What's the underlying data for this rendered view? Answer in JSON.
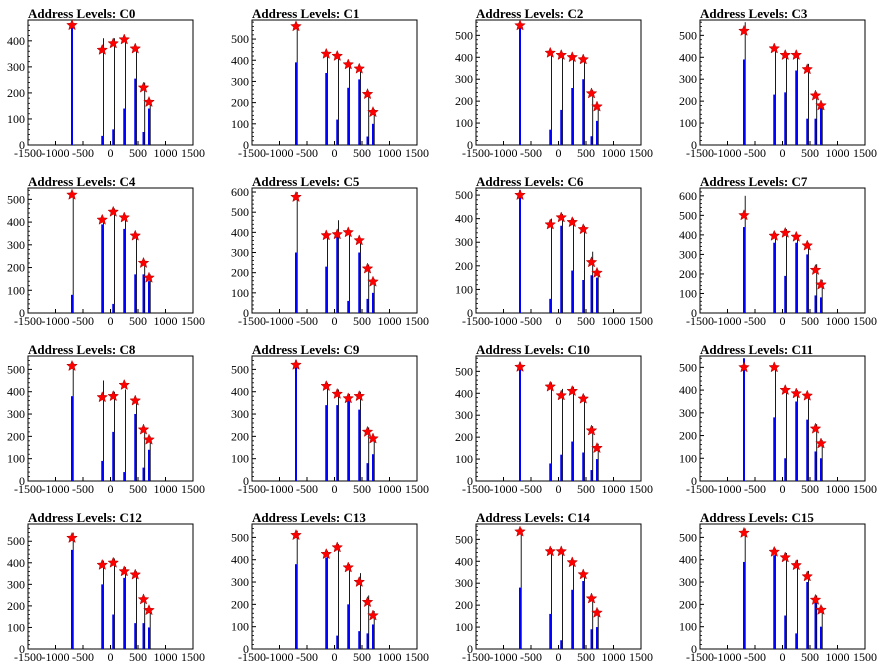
{
  "chart_data": [
    {
      "type": "bar",
      "title": "Address Levels: C0",
      "xlim": [
        -1500,
        1500
      ],
      "ylim": [
        0,
        480
      ],
      "yticks": [
        "0",
        "100",
        "200",
        "300",
        "400"
      ],
      "xticks": [
        "-1500",
        "-1000",
        "-500",
        "0",
        "500",
        "1000",
        "1500"
      ],
      "blue_x": [
        -700,
        -150,
        50,
        250,
        450,
        600,
        700
      ],
      "blue_y": [
        455,
        35,
        60,
        140,
        255,
        50,
        140
      ],
      "black_x": [
        -150,
        50,
        250,
        450,
        600,
        700
      ],
      "black_y": [
        410,
        410,
        405,
        375,
        240,
        170
      ],
      "peaks_x": [
        -700,
        -150,
        50,
        250,
        450,
        600,
        700
      ],
      "peaks_y": [
        460,
        365,
        390,
        405,
        370,
        220,
        165
      ]
    },
    {
      "type": "bar",
      "title": "Address Levels: C1",
      "xlim": [
        -1500,
        1500
      ],
      "ylim": [
        0,
        590
      ],
      "yticks": [
        "0",
        "100",
        "200",
        "300",
        "400",
        "500"
      ],
      "xticks": [
        "-1500",
        "-1000",
        "-500",
        "0",
        "500",
        "1000",
        "1500"
      ],
      "blue_x": [
        -700,
        -150,
        50,
        250,
        450,
        600,
        700
      ],
      "blue_y": [
        390,
        340,
        120,
        270,
        310,
        40,
        100
      ],
      "black_x": [
        -700,
        -150,
        50,
        250,
        450,
        600,
        700
      ],
      "black_y": [
        570,
        440,
        430,
        380,
        370,
        250,
        170
      ],
      "peaks_x": [
        -700,
        -150,
        50,
        250,
        450,
        600,
        700
      ],
      "peaks_y": [
        560,
        430,
        420,
        380,
        360,
        240,
        155
      ]
    },
    {
      "type": "bar",
      "title": "Address Levels: C2",
      "xlim": [
        -1500,
        1500
      ],
      "ylim": [
        0,
        570
      ],
      "yticks": [
        "0",
        "100",
        "200",
        "300",
        "400",
        "500"
      ],
      "xticks": [
        "-1500",
        "-1000",
        "-500",
        "0",
        "500",
        "1000",
        "1500"
      ],
      "blue_x": [
        -700,
        -150,
        50,
        250,
        450,
        600,
        700
      ],
      "blue_y": [
        540,
        70,
        160,
        260,
        300,
        40,
        110
      ],
      "black_x": [
        -150,
        50,
        250,
        450,
        600,
        700
      ],
      "black_y": [
        430,
        420,
        410,
        400,
        250,
        180
      ],
      "peaks_x": [
        -700,
        -150,
        50,
        250,
        450,
        600,
        700
      ],
      "peaks_y": [
        545,
        420,
        410,
        400,
        390,
        235,
        175
      ]
    },
    {
      "type": "bar",
      "title": "Address Levels: C3",
      "xlim": [
        -1500,
        1500
      ],
      "ylim": [
        0,
        570
      ],
      "yticks": [
        "0",
        "100",
        "200",
        "300",
        "400",
        "500"
      ],
      "xticks": [
        "-1500",
        "-1000",
        "-500",
        "0",
        "500",
        "1000",
        "1500"
      ],
      "blue_x": [
        -700,
        -150,
        50,
        250,
        450,
        600,
        700
      ],
      "blue_y": [
        390,
        230,
        240,
        340,
        120,
        120,
        170
      ],
      "black_x": [
        -700,
        -150,
        50,
        250,
        450,
        600,
        700
      ],
      "black_y": [
        560,
        440,
        420,
        410,
        370,
        240,
        190
      ],
      "peaks_x": [
        -700,
        -150,
        50,
        250,
        450,
        600,
        700
      ],
      "peaks_y": [
        520,
        440,
        410,
        410,
        345,
        225,
        180
      ]
    },
    {
      "type": "bar",
      "title": "Address Levels: C4",
      "xlim": [
        -1500,
        1500
      ],
      "ylim": [
        0,
        550
      ],
      "yticks": [
        "0",
        "100",
        "200",
        "300",
        "400",
        "500"
      ],
      "xticks": [
        "-1500",
        "-1000",
        "-500",
        "0",
        "500",
        "1000",
        "1500"
      ],
      "blue_x": [
        -700,
        -150,
        50,
        250,
        450,
        600,
        700
      ],
      "blue_y": [
        80,
        390,
        40,
        370,
        170,
        170,
        140
      ],
      "black_x": [
        -700,
        -150,
        50,
        250,
        450,
        600,
        700
      ],
      "black_y": [
        520,
        410,
        460,
        430,
        350,
        230,
        170
      ],
      "peaks_x": [
        -700,
        -150,
        50,
        250,
        450,
        600,
        700
      ],
      "peaks_y": [
        520,
        410,
        445,
        420,
        340,
        220,
        155
      ]
    },
    {
      "type": "bar",
      "title": "Address Levels: C5",
      "xlim": [
        -1500,
        1500
      ],
      "ylim": [
        0,
        620
      ],
      "yticks": [
        "0",
        "100",
        "200",
        "300",
        "400",
        "500",
        "600"
      ],
      "xticks": [
        "-1500",
        "-1000",
        "-500",
        "0",
        "500",
        "1000",
        "1500"
      ],
      "blue_x": [
        -700,
        -150,
        50,
        250,
        450,
        600,
        700
      ],
      "blue_y": [
        300,
        230,
        380,
        60,
        300,
        70,
        100
      ],
      "black_x": [
        -700,
        -150,
        50,
        250,
        450,
        600,
        700
      ],
      "black_y": [
        600,
        390,
        460,
        410,
        360,
        240,
        170
      ],
      "peaks_x": [
        -700,
        -150,
        50,
        250,
        450,
        600,
        700
      ],
      "peaks_y": [
        575,
        385,
        390,
        400,
        360,
        220,
        155
      ]
    },
    {
      "type": "bar",
      "title": "Address Levels: C6",
      "xlim": [
        -1500,
        1500
      ],
      "ylim": [
        0,
        530
      ],
      "yticks": [
        "0",
        "100",
        "200",
        "300",
        "400",
        "500"
      ],
      "xticks": [
        "-1500",
        "-1000",
        "-500",
        "0",
        "500",
        "1000",
        "1500"
      ],
      "blue_x": [
        -700,
        -150,
        50,
        250,
        450,
        600,
        700
      ],
      "blue_y": [
        520,
        60,
        370,
        180,
        140,
        160,
        150
      ],
      "black_x": [
        -150,
        50,
        250,
        450,
        600,
        700
      ],
      "black_y": [
        400,
        420,
        400,
        370,
        260,
        180
      ],
      "peaks_x": [
        -700,
        -150,
        50,
        250,
        450,
        600,
        700
      ],
      "peaks_y": [
        500,
        375,
        405,
        385,
        355,
        215,
        170
      ]
    },
    {
      "type": "bar",
      "title": "Address Levels: C7",
      "xlim": [
        -1500,
        1500
      ],
      "ylim": [
        0,
        640
      ],
      "yticks": [
        "0",
        "100",
        "200",
        "300",
        "400",
        "500",
        "600"
      ],
      "xticks": [
        "-1500",
        "-1000",
        "-500",
        "0",
        "500",
        "1000",
        "1500"
      ],
      "blue_x": [
        -700,
        -150,
        50,
        250,
        450,
        600,
        700
      ],
      "blue_y": [
        440,
        360,
        190,
        360,
        300,
        90,
        80
      ],
      "black_x": [
        -700,
        -150,
        50,
        250,
        450,
        600,
        700
      ],
      "black_y": [
        600,
        410,
        430,
        400,
        360,
        250,
        170
      ],
      "peaks_x": [
        -700,
        -150,
        50,
        250,
        450,
        600,
        700
      ],
      "peaks_y": [
        500,
        395,
        410,
        390,
        345,
        220,
        145
      ]
    },
    {
      "type": "bar",
      "title": "Address Levels: C8",
      "xlim": [
        -1500,
        1500
      ],
      "ylim": [
        0,
        560
      ],
      "yticks": [
        "0",
        "100",
        "200",
        "300",
        "400",
        "500"
      ],
      "xticks": [
        "-1500",
        "-1000",
        "-500",
        "0",
        "500",
        "1000",
        "1500"
      ],
      "blue_x": [
        -700,
        -150,
        50,
        250,
        450,
        600,
        700
      ],
      "blue_y": [
        380,
        90,
        220,
        40,
        300,
        60,
        140
      ],
      "black_x": [
        -700,
        -150,
        50,
        250,
        450,
        600,
        700
      ],
      "black_y": [
        530,
        450,
        400,
        410,
        360,
        240,
        200
      ],
      "peaks_x": [
        -700,
        -150,
        50,
        250,
        450,
        600,
        700
      ],
      "peaks_y": [
        515,
        375,
        380,
        430,
        360,
        230,
        185
      ]
    },
    {
      "type": "bar",
      "title": "Address Levels: C9",
      "xlim": [
        -1500,
        1500
      ],
      "ylim": [
        0,
        560
      ],
      "yticks": [
        "0",
        "100",
        "200",
        "300",
        "400",
        "500"
      ],
      "xticks": [
        "-1500",
        "-1000",
        "-500",
        "0",
        "500",
        "1000",
        "1500"
      ],
      "blue_x": [
        -700,
        -150,
        50,
        250,
        450,
        600,
        700
      ],
      "blue_y": [
        540,
        340,
        340,
        370,
        320,
        80,
        120
      ],
      "black_x": [
        -150,
        50,
        250,
        450,
        600,
        700
      ],
      "black_y": [
        440,
        410,
        390,
        400,
        240,
        200
      ],
      "peaks_x": [
        -700,
        -150,
        50,
        250,
        450,
        600,
        700
      ],
      "peaks_y": [
        520,
        425,
        390,
        370,
        380,
        220,
        190
      ]
    },
    {
      "type": "bar",
      "title": "Address Levels: C10",
      "xlim": [
        -1500,
        1500
      ],
      "ylim": [
        0,
        570
      ],
      "yticks": [
        "0",
        "100",
        "200",
        "300",
        "400",
        "500"
      ],
      "xticks": [
        "-1500",
        "-1000",
        "-500",
        "0",
        "500",
        "1000",
        "1500"
      ],
      "blue_x": [
        -700,
        -150,
        50,
        250,
        450,
        600,
        700
      ],
      "blue_y": [
        540,
        80,
        120,
        180,
        130,
        50,
        100
      ],
      "black_x": [
        -150,
        50,
        250,
        450,
        600,
        700
      ],
      "black_y": [
        450,
        420,
        430,
        390,
        250,
        170
      ],
      "peaks_x": [
        -700,
        -150,
        50,
        250,
        450,
        600,
        700
      ],
      "peaks_y": [
        520,
        430,
        390,
        410,
        375,
        230,
        150
      ]
    },
    {
      "type": "bar",
      "title": "Address Levels: C11",
      "xlim": [
        -1500,
        1500
      ],
      "ylim": [
        0,
        550
      ],
      "yticks": [
        "0",
        "100",
        "200",
        "300",
        "400",
        "500"
      ],
      "xticks": [
        "-1500",
        "-1000",
        "-500",
        "0",
        "500",
        "1000",
        "1500"
      ],
      "blue_x": [
        -700,
        -150,
        50,
        250,
        450,
        600,
        700
      ],
      "blue_y": [
        540,
        280,
        100,
        350,
        270,
        130,
        100
      ],
      "black_x": [
        -150,
        50,
        250,
        450,
        600,
        700
      ],
      "black_y": [
        500,
        410,
        400,
        380,
        250,
        180
      ],
      "peaks_x": [
        -700,
        -150,
        50,
        250,
        450,
        600,
        700
      ],
      "peaks_y": [
        500,
        500,
        400,
        385,
        375,
        230,
        165
      ]
    },
    {
      "type": "bar",
      "title": "Address Levels: C12",
      "xlim": [
        -1500,
        1500
      ],
      "ylim": [
        0,
        580
      ],
      "yticks": [
        "0",
        "100",
        "200",
        "300",
        "400",
        "500"
      ],
      "xticks": [
        "-1500",
        "-1000",
        "-500",
        "0",
        "500",
        "1000",
        "1500"
      ],
      "blue_x": [
        -700,
        -150,
        50,
        250,
        450,
        600,
        700
      ],
      "blue_y": [
        460,
        300,
        160,
        330,
        120,
        120,
        100
      ],
      "black_x": [
        -700,
        -150,
        50,
        250,
        450,
        600,
        700
      ],
      "black_y": [
        540,
        410,
        420,
        380,
        360,
        240,
        190
      ],
      "peaks_x": [
        -700,
        -150,
        50,
        250,
        450,
        600,
        700
      ],
      "peaks_y": [
        515,
        390,
        400,
        360,
        345,
        230,
        180
      ]
    },
    {
      "type": "bar",
      "title": "Address Levels: C13",
      "xlim": [
        -1500,
        1500
      ],
      "ylim": [
        0,
        560
      ],
      "yticks": [
        "0",
        "100",
        "200",
        "300",
        "400",
        "500"
      ],
      "xticks": [
        "-1500",
        "-1000",
        "-500",
        "0",
        "500",
        "1000",
        "1500"
      ],
      "blue_x": [
        -700,
        -150,
        50,
        250,
        450,
        600,
        700
      ],
      "blue_y": [
        380,
        410,
        60,
        200,
        80,
        70,
        110
      ],
      "black_x": [
        -700,
        -150,
        50,
        250,
        450,
        600,
        700
      ],
      "black_y": [
        530,
        440,
        470,
        380,
        340,
        240,
        170
      ],
      "peaks_x": [
        -700,
        -150,
        50,
        250,
        450,
        600,
        700
      ],
      "peaks_y": [
        510,
        425,
        455,
        365,
        300,
        210,
        150
      ]
    },
    {
      "type": "bar",
      "title": "Address Levels: C14",
      "xlim": [
        -1500,
        1500
      ],
      "ylim": [
        0,
        570
      ],
      "yticks": [
        "0",
        "100",
        "200",
        "300",
        "400",
        "500"
      ],
      "xticks": [
        "-1500",
        "-1000",
        "-500",
        "0",
        "500",
        "1000",
        "1500"
      ],
      "blue_x": [
        -700,
        -150,
        50,
        250,
        450,
        600,
        700
      ],
      "blue_y": [
        280,
        160,
        40,
        270,
        310,
        90,
        100
      ],
      "black_x": [
        -700,
        -150,
        50,
        250,
        450,
        600,
        700
      ],
      "black_y": [
        550,
        460,
        450,
        400,
        350,
        240,
        180
      ],
      "peaks_x": [
        -700,
        -150,
        50,
        250,
        450,
        600,
        700
      ],
      "peaks_y": [
        535,
        445,
        445,
        395,
        340,
        230,
        165
      ]
    },
    {
      "type": "bar",
      "title": "Address Levels: C15",
      "xlim": [
        -1500,
        1500
      ],
      "ylim": [
        0,
        560
      ],
      "yticks": [
        "0",
        "100",
        "200",
        "300",
        "400",
        "500"
      ],
      "xticks": [
        "-1500",
        "-1000",
        "-500",
        "0",
        "500",
        "1000",
        "1500"
      ],
      "blue_x": [
        -700,
        -150,
        50,
        250,
        450,
        600,
        700
      ],
      "blue_y": [
        390,
        420,
        150,
        70,
        300,
        210,
        100
      ],
      "black_x": [
        -700,
        -150,
        50,
        250,
        450,
        600,
        700
      ],
      "black_y": [
        540,
        450,
        430,
        400,
        350,
        240,
        190
      ],
      "peaks_x": [
        -700,
        -150,
        50,
        250,
        450,
        600,
        700
      ],
      "peaks_y": [
        520,
        435,
        410,
        375,
        325,
        220,
        175
      ]
    }
  ],
  "colors": {
    "bar_primary": "#0000ff",
    "bar_secondary": "#000000",
    "marker": "#ff0000",
    "frame": "#000000"
  }
}
